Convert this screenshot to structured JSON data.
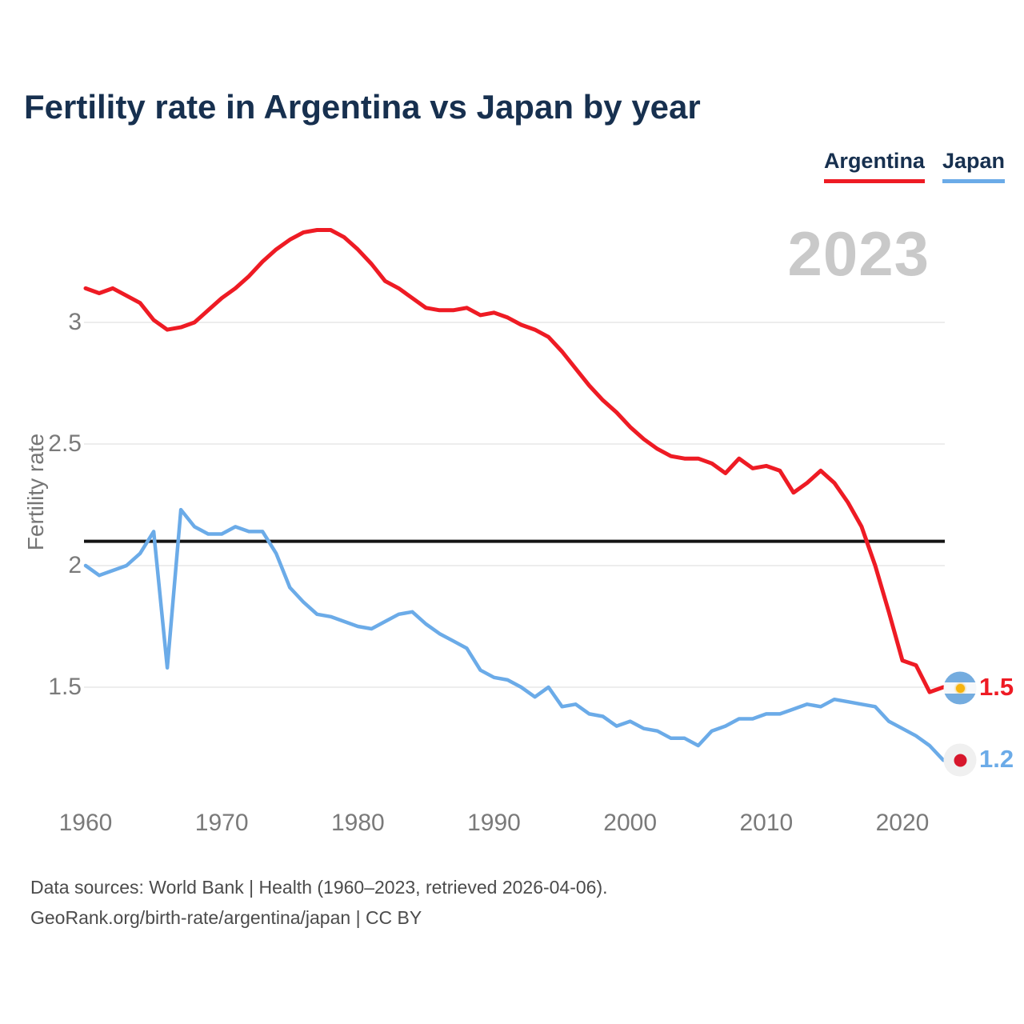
{
  "header": {
    "title": "Fertility rate in Argentina vs Japan by year"
  },
  "legend": {
    "items": [
      {
        "label": "Argentina",
        "color": "#ee1b24"
      },
      {
        "label": "Japan",
        "color": "#6babe8"
      }
    ]
  },
  "watermark": "2023",
  "footer": {
    "line1": "Data sources: World Bank | Health (1960–2023, retrieved 2026-04-06).",
    "line2": "GeoRank.org/birth-rate/argentina/japan | CC BY"
  },
  "end_labels": [
    {
      "series": "Argentina",
      "text": "1.5",
      "color": "#ee1b24",
      "flag": "argentina-flag-icon"
    },
    {
      "series": "Japan",
      "text": "1.2",
      "color": "#6babe8",
      "flag": "japan-flag-icon"
    }
  ],
  "colors": {
    "argentina_line": "#ee1b24",
    "japan_line": "#6babe8",
    "reference_line": "#141414",
    "gridline": "#ededed",
    "title_text": "#17304f",
    "axis_text": "#7a7a7a",
    "watermark_text": "#c9c9c9"
  },
  "chart_data": {
    "type": "line",
    "title": "Fertility rate in Argentina vs Japan by year",
    "xlabel": "",
    "ylabel": "Fertility rate",
    "xlim": [
      1960,
      2023
    ],
    "ylim": [
      1.1,
      3.45
    ],
    "x_ticks": [
      1960,
      1970,
      1980,
      1990,
      2000,
      2010,
      2020
    ],
    "y_ticks": [
      3,
      2.5,
      2,
      1.5
    ],
    "grid": "horizontal",
    "legend_position": "top-right",
    "reference_line": {
      "value": 2.1
    },
    "x": [
      1960,
      1961,
      1962,
      1963,
      1964,
      1965,
      1966,
      1967,
      1968,
      1969,
      1970,
      1971,
      1972,
      1973,
      1974,
      1975,
      1976,
      1977,
      1978,
      1979,
      1980,
      1981,
      1982,
      1983,
      1984,
      1985,
      1986,
      1987,
      1988,
      1989,
      1990,
      1991,
      1992,
      1993,
      1994,
      1995,
      1996,
      1997,
      1998,
      1999,
      2000,
      2001,
      2002,
      2003,
      2004,
      2005,
      2006,
      2007,
      2008,
      2009,
      2010,
      2011,
      2012,
      2013,
      2014,
      2015,
      2016,
      2017,
      2018,
      2019,
      2020,
      2021,
      2022,
      2023
    ],
    "series": [
      {
        "name": "Argentina",
        "color": "#ee1b24",
        "end_value": 1.5,
        "values": [
          3.14,
          3.12,
          3.14,
          3.11,
          3.08,
          3.01,
          2.97,
          2.98,
          3.0,
          3.05,
          3.1,
          3.14,
          3.19,
          3.25,
          3.3,
          3.34,
          3.37,
          3.38,
          3.38,
          3.35,
          3.3,
          3.24,
          3.17,
          3.14,
          3.1,
          3.06,
          3.05,
          3.05,
          3.06,
          3.03,
          3.04,
          3.02,
          2.99,
          2.97,
          2.94,
          2.88,
          2.81,
          2.74,
          2.68,
          2.63,
          2.57,
          2.52,
          2.48,
          2.45,
          2.44,
          2.44,
          2.42,
          2.38,
          2.44,
          2.4,
          2.41,
          2.39,
          2.3,
          2.34,
          2.39,
          2.34,
          2.26,
          2.16,
          2.0,
          1.81,
          1.61,
          1.59,
          1.48,
          1.5
        ]
      },
      {
        "name": "Japan",
        "color": "#6babe8",
        "end_value": 1.2,
        "values": [
          2.0,
          1.96,
          1.98,
          2.0,
          2.05,
          2.14,
          1.58,
          2.23,
          2.16,
          2.13,
          2.13,
          2.16,
          2.14,
          2.14,
          2.05,
          1.91,
          1.85,
          1.8,
          1.79,
          1.77,
          1.75,
          1.74,
          1.77,
          1.8,
          1.81,
          1.76,
          1.72,
          1.69,
          1.66,
          1.57,
          1.54,
          1.53,
          1.5,
          1.46,
          1.5,
          1.42,
          1.43,
          1.39,
          1.38,
          1.34,
          1.36,
          1.33,
          1.32,
          1.29,
          1.29,
          1.26,
          1.32,
          1.34,
          1.37,
          1.37,
          1.39,
          1.39,
          1.41,
          1.43,
          1.42,
          1.45,
          1.44,
          1.43,
          1.42,
          1.36,
          1.33,
          1.3,
          1.26,
          1.2
        ]
      }
    ]
  }
}
